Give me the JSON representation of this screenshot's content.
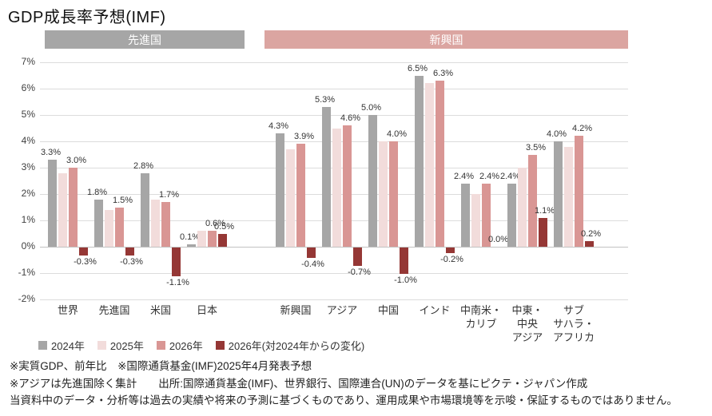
{
  "title": "GDP成長率予想(IMF)",
  "group_headers": [
    {
      "label": "先進国",
      "color": "#a6a6a6"
    },
    {
      "label": "新興国",
      "color": "#dba5a1"
    }
  ],
  "legend": [
    {
      "label": "2024年",
      "color": "#a6a6a6"
    },
    {
      "label": "2025年",
      "color": "#f2dcdb"
    },
    {
      "label": "2026年",
      "color": "#d99694"
    },
    {
      "label": "2026年(対2024年からの変化)",
      "color": "#953735"
    }
  ],
  "footnotes": [
    "※実質GDP、前年比　※国際通貨基金(IMF)2025年4月発表予想",
    "※アジアは先進国除く集計　　出所:国際通貨基金(IMF)、世界銀行、国際連合(UN)のデータを基にピクテ・ジャパン作成",
    "当資料中のデータ・分析等は過去の実績や将来の予測に基づくものであり、運用成果や市場環境等を示唆・保証するものではありません。"
  ],
  "chart_data": {
    "type": "bar",
    "title": "GDP成長率予想(IMF)",
    "xlabel": "",
    "ylabel": "",
    "ylim": [
      -2,
      7
    ],
    "yticks": [
      7,
      6,
      5,
      4,
      3,
      2,
      1,
      0,
      -1,
      -2
    ],
    "ytick_suffix": "%",
    "grid": true,
    "legend_position": "bottom",
    "series": [
      "2024年",
      "2025年",
      "2026年",
      "2026年(対2024年からの変化)"
    ],
    "sections": [
      {
        "label": "先進国",
        "categories": [
          "世界",
          "先進国",
          "米国",
          "日本"
        ]
      },
      {
        "label": "新興国",
        "categories": [
          "新興国",
          "アジア",
          "中国",
          "インド",
          "中南米・カリブ",
          "中東・中央アジア",
          "サブサハラ・アフリカ"
        ]
      }
    ],
    "groups": [
      {
        "section": "先進国",
        "category": "世界",
        "category_display": "世界",
        "values": [
          3.3,
          2.8,
          3.0,
          -0.3
        ],
        "value_labels": [
          "3.3%",
          "",
          "3.0%",
          "-0.3%"
        ]
      },
      {
        "section": "先進国",
        "category": "先進国",
        "category_display": "先進国",
        "values": [
          1.8,
          1.4,
          1.5,
          -0.3
        ],
        "value_labels": [
          "1.8%",
          "",
          "1.5%",
          "-0.3%"
        ]
      },
      {
        "section": "先進国",
        "category": "米国",
        "category_display": "米国",
        "values": [
          2.8,
          1.8,
          1.7,
          -1.1
        ],
        "value_labels": [
          "2.8%",
          "",
          "1.7%",
          "-1.1%"
        ]
      },
      {
        "section": "先進国",
        "category": "日本",
        "category_display": "日本",
        "values": [
          0.1,
          0.6,
          0.6,
          0.5
        ],
        "value_labels": [
          "0.1%",
          "",
          "0.6%",
          "0.5%"
        ]
      },
      {
        "section": "新興国",
        "category": "新興国",
        "category_display": "新興国",
        "values": [
          4.3,
          3.7,
          3.9,
          -0.4
        ],
        "value_labels": [
          "4.3%",
          "",
          "3.9%",
          "-0.4%"
        ]
      },
      {
        "section": "新興国",
        "category": "アジア",
        "category_display": "アジア",
        "values": [
          5.3,
          4.5,
          4.6,
          -0.7
        ],
        "value_labels": [
          "5.3%",
          "",
          "4.6%",
          "-0.7%"
        ]
      },
      {
        "section": "新興国",
        "category": "中国",
        "category_display": "中国",
        "values": [
          5.0,
          4.0,
          4.0,
          -1.0
        ],
        "value_labels": [
          "5.0%",
          "",
          "4.0%",
          "-1.0%"
        ]
      },
      {
        "section": "新興国",
        "category": "インド",
        "category_display": "インド",
        "values": [
          6.5,
          6.2,
          6.3,
          -0.2
        ],
        "value_labels": [
          "6.5%",
          "",
          "6.3%",
          "-0.2%"
        ]
      },
      {
        "section": "新興国",
        "category": "中南米・カリブ",
        "category_display": "中南米・\nカリブ",
        "values": [
          2.4,
          2.0,
          2.4,
          0.0
        ],
        "value_labels": [
          "2.4%",
          "",
          "2.4%",
          "0.0%"
        ]
      },
      {
        "section": "新興国",
        "category": "中東・中央アジア",
        "category_display": "中東・\n中央\nアジア",
        "values": [
          2.4,
          3.0,
          3.5,
          1.1
        ],
        "value_labels": [
          "2.4%",
          "",
          "3.5%",
          "1.1%"
        ]
      },
      {
        "section": "新興国",
        "category": "サブサハラ・アフリカ",
        "category_display": "サブ\nサハラ・\nアフリカ",
        "values": [
          4.0,
          3.8,
          4.2,
          0.2
        ],
        "value_labels": [
          "4.0%",
          "",
          "4.2%",
          "0.2%"
        ]
      }
    ]
  }
}
